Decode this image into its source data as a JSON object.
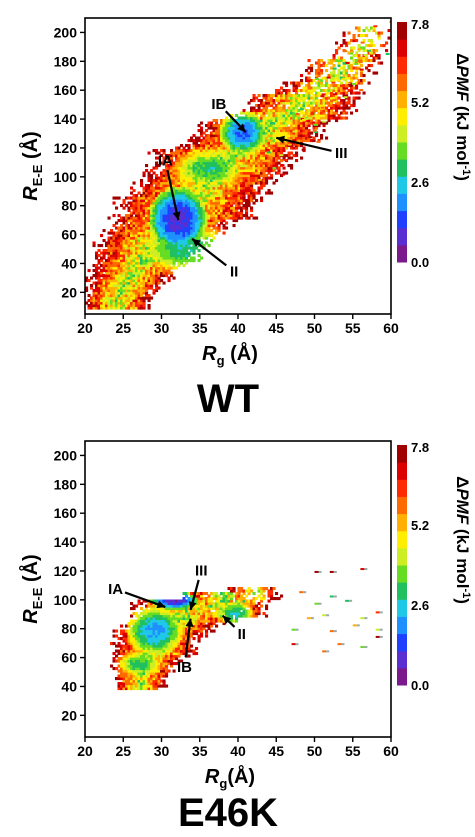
{
  "chart_data": [
    {
      "type": "heatmap",
      "title": "WT",
      "xlabel": {
        "main": "R",
        "sub": "g",
        "unit": " (Å)"
      },
      "ylabel": {
        "main": "R",
        "sub": "E-E",
        "unit": " (Å)"
      },
      "xlim": [
        20,
        60
      ],
      "ylim": [
        5,
        210
      ],
      "x_ticks": [
        20,
        25,
        30,
        35,
        40,
        45,
        50,
        55,
        60
      ],
      "y_ticks": [
        20,
        40,
        60,
        80,
        100,
        120,
        140,
        160,
        180,
        200
      ],
      "colorbar": {
        "label": {
          "prefix": "Δ",
          "italic": "PMF",
          "unit": " (kJ mol",
          "sup": "-1",
          "close": ")"
        },
        "ticks": [
          "7.8",
          "5.2",
          "2.6",
          "0.0"
        ],
        "tick_values": [
          7.8,
          5.2,
          2.6,
          0.0
        ],
        "range": [
          0.0,
          7.8
        ],
        "colors": [
          "#7a1a8c",
          "#5a2ed0",
          "#2040ff",
          "#1e90ff",
          "#20c8e8",
          "#20c060",
          "#66dd22",
          "#ccee22",
          "#ffee00",
          "#ffb000",
          "#ff6a00",
          "#ff2a00",
          "#dd0000",
          "#a00000"
        ]
      },
      "annotations": [
        {
          "label": "IA",
          "text_x": 30.5,
          "text_y": 108,
          "tip_x": 32.2,
          "tip_y": 70
        },
        {
          "label": "IB",
          "text_x": 37.5,
          "text_y": 147,
          "tip_x": 41.0,
          "tip_y": 131
        },
        {
          "label": "II",
          "text_x": 39.5,
          "text_y": 31,
          "tip_x": 34.0,
          "tip_y": 57
        },
        {
          "label": "III",
          "text_x": 53.5,
          "text_y": 113,
          "tip_x": 45.0,
          "tip_y": 127
        }
      ],
      "basins": [
        {
          "x": 32.0,
          "y": 70.0,
          "rx": 3.0,
          "ry": 18.0,
          "value": 0.8
        },
        {
          "x": 40.5,
          "y": 130.0,
          "rx": 2.5,
          "ry": 12.0,
          "value": 1.5
        },
        {
          "x": 33.0,
          "y": 50.0,
          "rx": 5.0,
          "ry": 15.0,
          "value": 2.8
        },
        {
          "x": 36.0,
          "y": 105.0,
          "rx": 4.0,
          "ry": 12.0,
          "value": 3.0
        },
        {
          "x": 45.5,
          "y": 127.0,
          "rx": 2.0,
          "ry": 6.0,
          "value": 4.5
        }
      ],
      "region": {
        "center": [
          [
            24,
            15
          ],
          [
            28,
            48
          ],
          [
            33,
            78
          ],
          [
            38,
            110
          ],
          [
            43,
            132
          ],
          [
            48,
            148
          ],
          [
            53,
            172
          ],
          [
            57,
            195
          ]
        ],
        "halfwidth": [
          4,
          6,
          8,
          8,
          7,
          6,
          4,
          3
        ],
        "densities": [
          1.0,
          1.0,
          1.0,
          1.0,
          1.0,
          0.85,
          0.5,
          0.3
        ]
      }
    },
    {
      "type": "heatmap",
      "title": "E46K",
      "xlabel": {
        "main": "R",
        "sub": "g",
        "unit": "(Å)"
      },
      "ylabel": {
        "main": "R",
        "sub": "E-E",
        "unit": " (Å)"
      },
      "xlim": [
        20,
        60
      ],
      "ylim": [
        5,
        210
      ],
      "x_ticks": [
        20,
        25,
        30,
        35,
        40,
        45,
        50,
        55,
        60
      ],
      "y_ticks": [
        20,
        40,
        60,
        80,
        100,
        120,
        140,
        160,
        180,
        200
      ],
      "colorbar": {
        "label": {
          "prefix": "Δ",
          "italic": "PMF",
          "unit": " (kJ mol",
          "sup": "-1",
          "close": ")"
        },
        "ticks": [
          "7.8",
          "5.2",
          "2.6",
          "0.0"
        ],
        "tick_values": [
          7.8,
          5.2,
          2.6,
          0.0
        ],
        "range": [
          0.0,
          7.8
        ],
        "colors": [
          "#7a1a8c",
          "#5a2ed0",
          "#2040ff",
          "#1e90ff",
          "#20c8e8",
          "#20c060",
          "#66dd22",
          "#ccee22",
          "#ffee00",
          "#ffb000",
          "#ff6a00",
          "#ff2a00",
          "#dd0000",
          "#a00000"
        ]
      },
      "annotations": [
        {
          "label": "IA",
          "text_x": 24.0,
          "text_y": 104,
          "tip_x": 30.5,
          "tip_y": 95
        },
        {
          "label": "III",
          "text_x": 35.2,
          "text_y": 117,
          "tip_x": 33.8,
          "tip_y": 93
        },
        {
          "label": "IB",
          "text_x": 33.0,
          "text_y": 50,
          "tip_x": 33.8,
          "tip_y": 87
        },
        {
          "label": "II",
          "text_x": 40.5,
          "text_y": 73,
          "tip_x": 38.0,
          "tip_y": 89
        }
      ],
      "basins": [
        {
          "x": 31.5,
          "y": 99.0,
          "rx": 2.5,
          "ry": 5.0,
          "value": 0.7
        },
        {
          "x": 29.0,
          "y": 78.0,
          "rx": 3.0,
          "ry": 14.0,
          "value": 2.0
        },
        {
          "x": 39.5,
          "y": 90.0,
          "rx": 2.0,
          "ry": 7.0,
          "value": 2.5
        },
        {
          "x": 34.0,
          "y": 92.0,
          "rx": 2.5,
          "ry": 5.0,
          "value": 5.5
        },
        {
          "x": 27.0,
          "y": 55.0,
          "rx": 2.5,
          "ry": 8.0,
          "value": 3.0
        }
      ],
      "region": {
        "center": [
          [
            27,
            45
          ],
          [
            29,
            70
          ],
          [
            33,
            92
          ],
          [
            38,
            96
          ],
          [
            42,
            100
          ]
        ],
        "halfwidth": [
          3,
          5,
          6,
          5,
          3
        ],
        "densities": [
          1.0,
          1.0,
          1.0,
          0.9,
          0.6
        ]
      },
      "sparse_points": [
        [
          50,
          120
        ],
        [
          52,
          120
        ],
        [
          56,
          122
        ],
        [
          48,
          106
        ],
        [
          50,
          98
        ],
        [
          52,
          103
        ],
        [
          54,
          100
        ],
        [
          49,
          88
        ],
        [
          51,
          90
        ],
        [
          56,
          88
        ],
        [
          58,
          92
        ],
        [
          47,
          80
        ],
        [
          52,
          79
        ],
        [
          55,
          83
        ],
        [
          58,
          80
        ],
        [
          51,
          65
        ],
        [
          53,
          70
        ],
        [
          56,
          68
        ],
        [
          58,
          75
        ],
        [
          47,
          70
        ]
      ]
    }
  ]
}
